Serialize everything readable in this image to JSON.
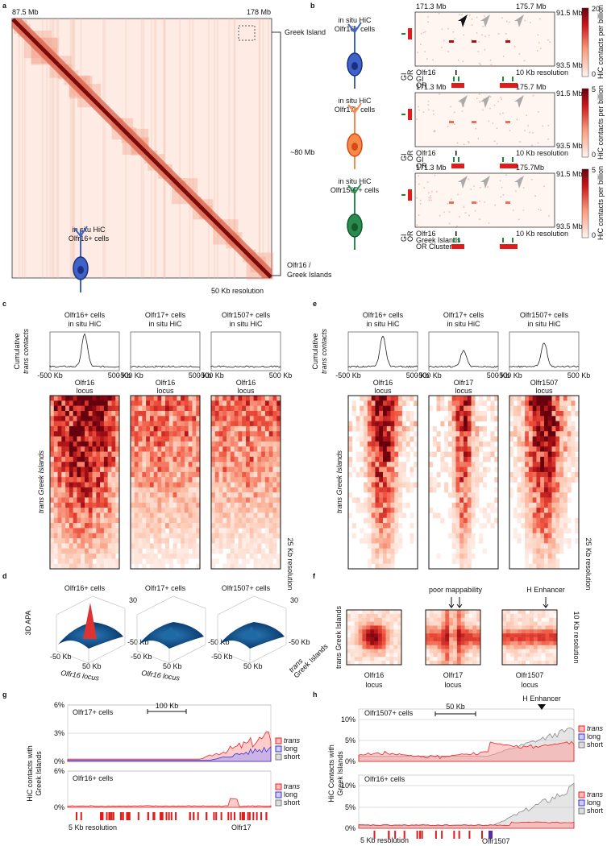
{
  "panel_a": {
    "label": "a",
    "start": "87.5 Mb",
    "end": "178 Mb",
    "greek_island": "Greek Island",
    "span": "~80 Mb",
    "locus_1": "Olfr16 /",
    "locus_2": "Greek Islands",
    "method": "in situ HiC",
    "cells": "Olfr16+ cells",
    "resolution": "50 Kb resolution"
  },
  "panel_b": {
    "label": "b",
    "rows": [
      {
        "method": "in situ HiC",
        "cells": "Olfr16+ cells",
        "x_start": "171.3 Mb",
        "x_end": "175.7 Mb",
        "y_start": "91.5 Mb",
        "y_end": "93.5 Mb",
        "cbar_max": "20",
        "cbar_min": "0",
        "cbar_title": "HiC contacts per billion",
        "side_gi": "GI",
        "side_or": "OR",
        "gene": "Olfr16",
        "gi": "GI",
        "or": "OR",
        "resolution": "10 Kb resolution"
      },
      {
        "method": "in situ HiC",
        "cells": "Olfr17+ cells",
        "x_start": "171.3 Mb",
        "x_end": "175.7 Mb",
        "y_start": "91.5 Mb",
        "y_end": "93.5 Mb",
        "cbar_max": "5",
        "cbar_min": "0",
        "cbar_title": "HiC contacts per billion",
        "side_gi": "GI",
        "side_or": "OR",
        "gene": "Olfr16",
        "gi": "GI",
        "or": "OR",
        "resolution": "10 Kb resolution"
      },
      {
        "method": "in situ HiC",
        "cells": "Olfr1507+ cells",
        "x_start": "171.3 Mb",
        "x_end": "175.7Mb",
        "y_start": "91.5 Mb",
        "y_end": "93.5 Mb",
        "cbar_max": "5",
        "cbar_min": "0",
        "cbar_title": "HiC contacts per billion",
        "side_gi": "GI",
        "side_or": "OR",
        "gene": "Olfr16",
        "gi": "Greek Islands",
        "or": "OR Clusters",
        "resolution": "10 Kb resolution"
      }
    ]
  },
  "panel_c": {
    "label": "c",
    "profile_label_1": "Cumulative",
    "profile_label_2": "trans contacts",
    "heatmap_label": "trans Greek Islands",
    "resolution": "25 Kb resolution",
    "columns": [
      {
        "cells": "Olfr16+ cells",
        "method": "in situ HiC",
        "x_min": "-500 Kb",
        "x_max": "500 Kb",
        "locus_1": "Olfr16",
        "locus_2": "locus"
      },
      {
        "cells": "Olfr17+ cells",
        "method": "in situ HiC",
        "x_min": "-500 Kb",
        "x_max": "500 Kb",
        "locus_1": "Olfr16",
        "locus_2": "locus"
      },
      {
        "cells": "Olfr1507+ cells",
        "method": "in situ HiC",
        "x_min": "-500 Kb",
        "x_max": "500 Kb",
        "locus_1": "Olfr16",
        "locus_2": "locus"
      }
    ]
  },
  "panel_d": {
    "label": "d",
    "y_label": "3D APA",
    "columns": [
      {
        "title": "Olfr16+ cells",
        "z_max": "30",
        "right_tick": "-50 Kb",
        "left_tick": "-50 Kb",
        "bottom_tick": "50 Kb",
        "x_label": "Olfr16 locus"
      },
      {
        "title": "Olfr17+ cells",
        "right_tick": "-50 Kb",
        "left_tick": "-50 Kb",
        "bottom_tick": "50 Kb",
        "x_label": "Olfr16 locus"
      },
      {
        "title": "Olfr1507+ cells",
        "z_max": "30",
        "right_tick": "-50 Kb",
        "left_tick": "-50 Kb",
        "bottom_tick": "50 Kb",
        "y_label_1": "trans",
        "y_label_2": "Greek Islands"
      }
    ]
  },
  "panel_e": {
    "label": "e",
    "profile_label_1": "Cumulative",
    "profile_label_2": "trans contacts",
    "heatmap_label": "trans Greek Islands",
    "resolution": "25 Kb resolution",
    "columns": [
      {
        "cells": "Olfr16+ cells",
        "method": "in situ HiC",
        "x_min": "-500 Kb",
        "x_max": "500 Kb",
        "locus_1": "Olfr16",
        "locus_2": "locus"
      },
      {
        "cells": "Olfr17+ cells",
        "method": "in situ HiC",
        "x_min": "-500 Kb",
        "x_max": "500 Kb",
        "locus_1": "Olfr17",
        "locus_2": "locus"
      },
      {
        "cells": "Olfr1507+ cells",
        "method": "in situ HiC",
        "x_min": "-500 Kb",
        "x_max": "500 Kb",
        "locus_1": "Olfr1507",
        "locus_2": "locus"
      }
    ]
  },
  "panel_f": {
    "label": "f",
    "annotation_1": "poor mappability",
    "annotation_2": "H Enhancer",
    "y_label": "trans Greek Islands",
    "resolution": "10 Kb resolution",
    "columns": [
      {
        "locus_1": "Olfr16",
        "locus_2": "locus"
      },
      {
        "locus_1": "Olfr17",
        "locus_2": "locus"
      },
      {
        "locus_1": "Olfr1507",
        "locus_2": "locus"
      }
    ]
  },
  "panel_g": {
    "label": "g",
    "y_label_1": "HiC contacts with",
    "y_label_2": "Greek Islands",
    "scale": "100 Kb",
    "resolution": "5 Kb resolution",
    "gene": "Olfr17",
    "plots": [
      {
        "cells": "Olfr17+ cells",
        "ticks": [
          "6%",
          "3%",
          "0%"
        ],
        "legend": [
          "trans",
          "long",
          "short"
        ]
      },
      {
        "cells": "Olfr16+ cells",
        "ticks": [
          "6%",
          "0%"
        ],
        "legend": [
          "trans",
          "long",
          "short"
        ]
      }
    ]
  },
  "panel_h": {
    "label": "h",
    "y_label_1": "HiC Contacts with",
    "y_label_2": "Greek Islands",
    "scale": "50 Kb",
    "annotation": "H Enhancer",
    "resolution": "5 Kb resolution",
    "gene": "Olfr1507",
    "plots": [
      {
        "cells": "Olfr1507+ cells",
        "ticks": [
          "10%",
          "5%",
          "0%"
        ],
        "legend": [
          "trans",
          "long",
          "short"
        ]
      },
      {
        "cells": "Olfr16+ cells",
        "ticks": [
          "10%",
          "5%",
          "0%"
        ],
        "legend": [
          "trans",
          "long",
          "short"
        ]
      }
    ]
  }
}
